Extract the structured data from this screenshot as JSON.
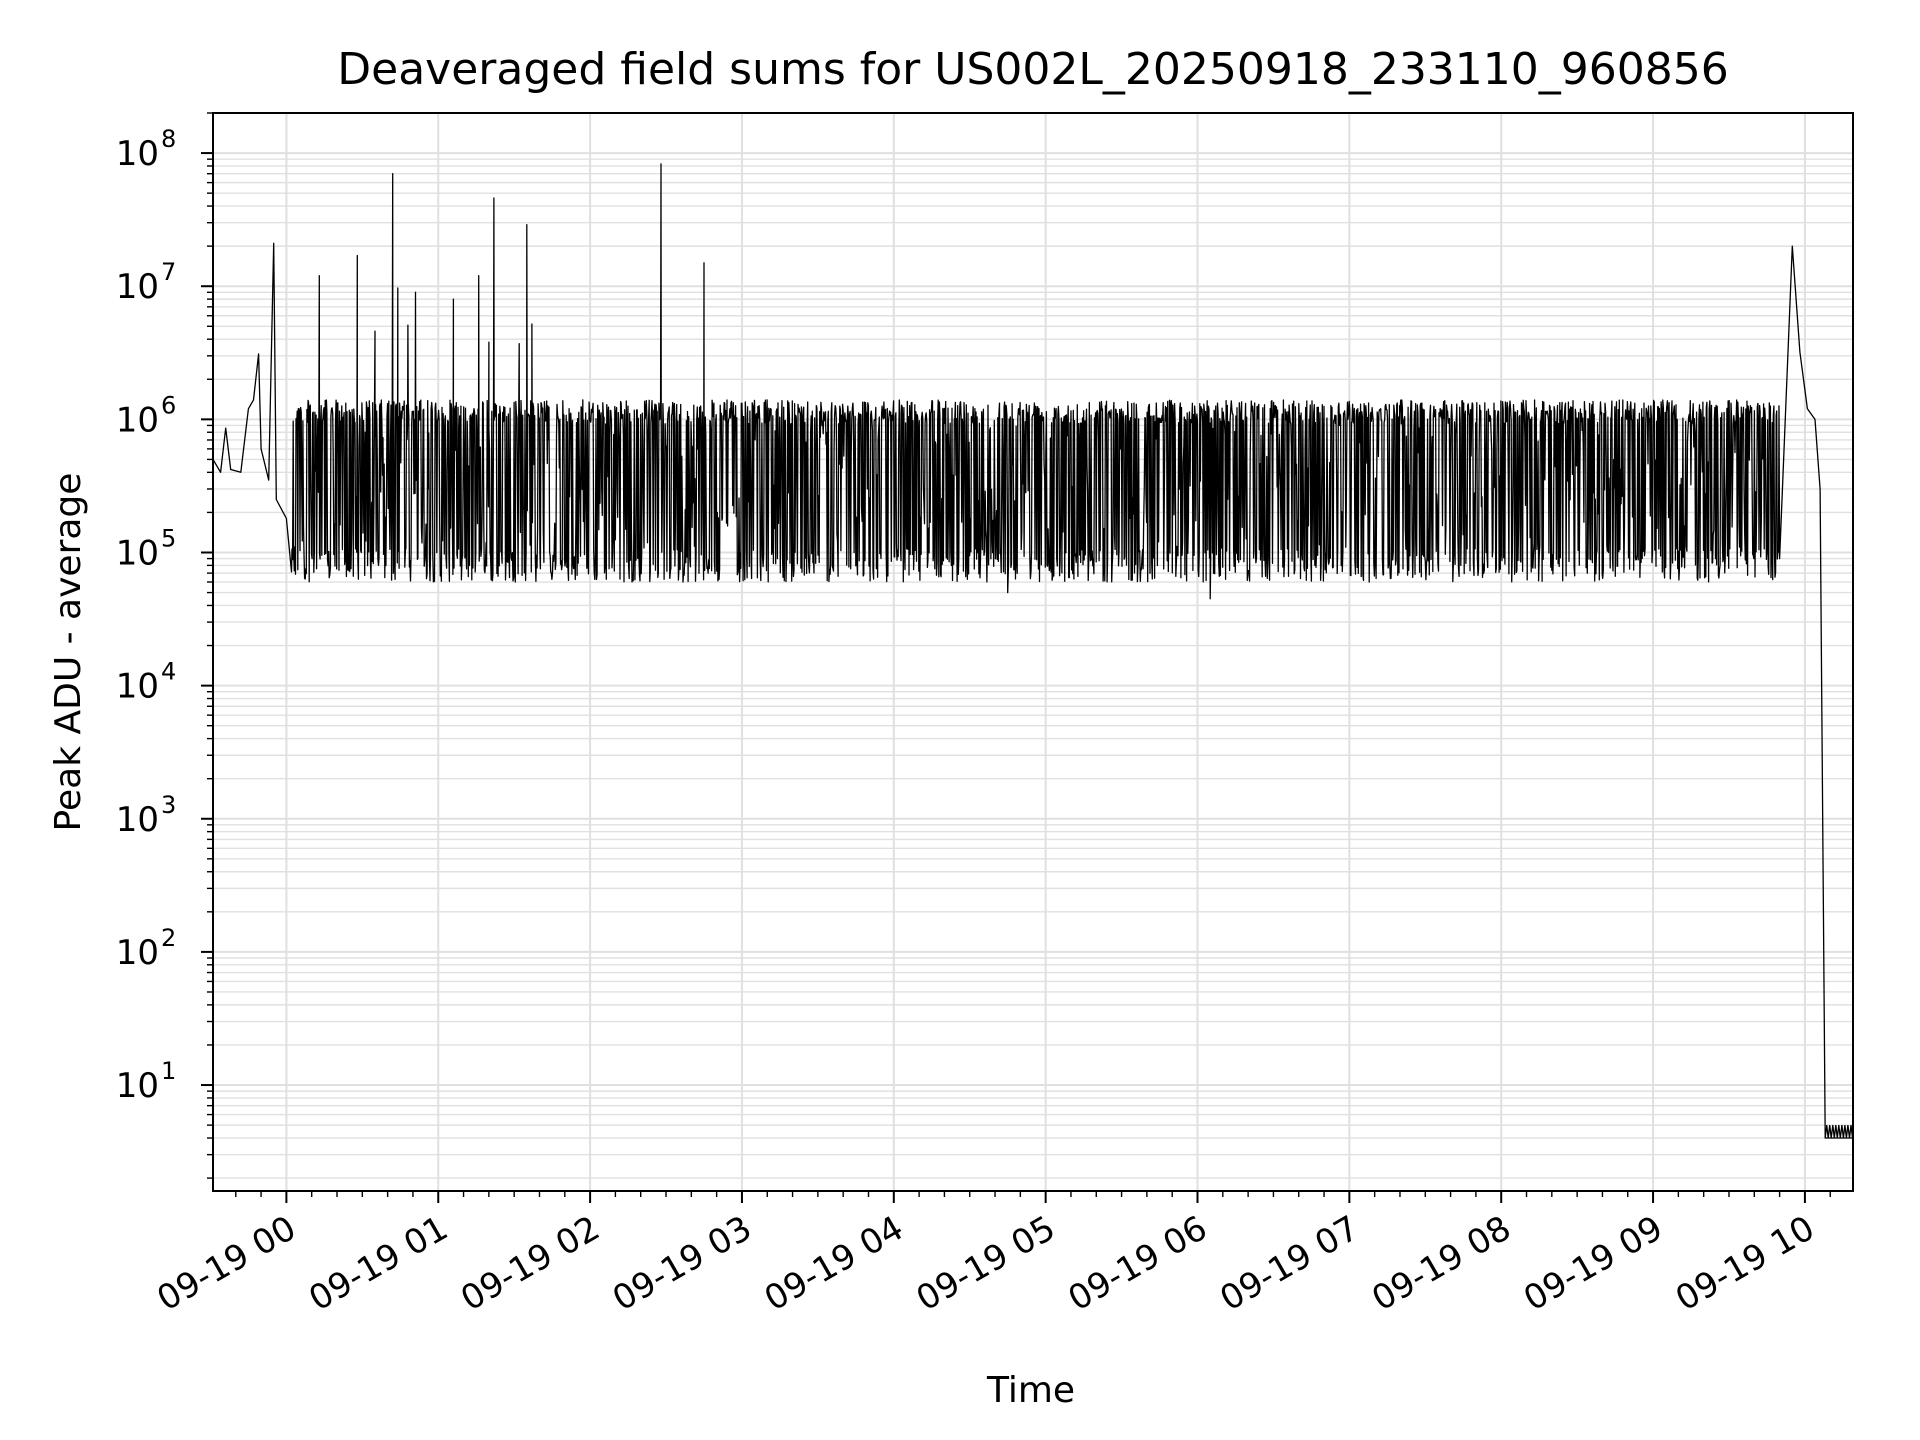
{
  "chart_data": {
    "type": "line",
    "title": "Deaveraged field sums for US002L_20250918_233110_960856",
    "xlabel": "Time",
    "ylabel": "Peak ADU - average",
    "yscale": "log",
    "ylim": [
      1.6,
      200000000
    ],
    "xlim": [
      "2025-09-18 23:31",
      "2025-09-19 10:19"
    ],
    "grid": true,
    "grid_minor": true,
    "line_color": "#000000",
    "grid_color": "#e0e0e0",
    "x_ticks": [
      {
        "value": "2025-09-19 00:00",
        "label": "09-19 00"
      },
      {
        "value": "2025-09-19 01:00",
        "label": "09-19 01"
      },
      {
        "value": "2025-09-19 02:00",
        "label": "09-19 02"
      },
      {
        "value": "2025-09-19 03:00",
        "label": "09-19 03"
      },
      {
        "value": "2025-09-19 04:00",
        "label": "09-19 04"
      },
      {
        "value": "2025-09-19 05:00",
        "label": "09-19 05"
      },
      {
        "value": "2025-09-19 06:00",
        "label": "09-19 06"
      },
      {
        "value": "2025-09-19 07:00",
        "label": "09-19 07"
      },
      {
        "value": "2025-09-19 08:00",
        "label": "09-19 08"
      },
      {
        "value": "2025-09-19 09:00",
        "label": "09-19 09"
      },
      {
        "value": "2025-09-19 10:00",
        "label": "09-19 10"
      }
    ],
    "y_ticks": [
      {
        "value": 10,
        "base": "10",
        "exp": "1"
      },
      {
        "value": 100,
        "base": "10",
        "exp": "2"
      },
      {
        "value": 1000,
        "base": "10",
        "exp": "3"
      },
      {
        "value": 10000,
        "base": "10",
        "exp": "4"
      },
      {
        "value": 100000,
        "base": "10",
        "exp": "5"
      },
      {
        "value": 1000000,
        "base": "10",
        "exp": "6"
      },
      {
        "value": 10000000,
        "base": "10",
        "exp": "7"
      },
      {
        "value": 100000000,
        "base": "10",
        "exp": "8"
      }
    ],
    "series": [
      {
        "style": "dense noisy time series",
        "points": [
          [
            "2025-09-18 23:31",
            500000
          ],
          [
            "2025-09-18 23:34",
            400000
          ],
          [
            "2025-09-18 23:36",
            860000
          ],
          [
            "2025-09-18 23:38",
            420000
          ],
          [
            "2025-09-18 23:42",
            400000
          ],
          [
            "2025-09-18 23:45",
            1200000
          ],
          [
            "2025-09-18 23:47",
            1400000
          ],
          [
            "2025-09-18 23:49",
            3100000
          ],
          [
            "2025-09-18 23:50",
            600000
          ],
          [
            "2025-09-18 23:53",
            350000
          ],
          [
            "2025-09-18 23:55",
            21000000
          ],
          [
            "2025-09-18 23:56",
            250000
          ],
          [
            "2025-09-19 00:00",
            180000
          ],
          [
            "2025-09-19 00:05",
            1200000
          ],
          [
            "2025-09-19 00:13",
            12000000
          ],
          [
            "2025-09-19 00:28",
            17000000
          ],
          [
            "2025-09-19 00:35",
            4600000
          ],
          [
            "2025-09-19 00:42",
            70000000
          ],
          [
            "2025-09-19 00:44",
            9700000
          ],
          [
            "2025-09-19 00:48",
            5100000
          ],
          [
            "2025-09-19 00:51",
            9000000
          ],
          [
            "2025-09-19 01:06",
            8000000
          ],
          [
            "2025-09-19 01:16",
            12000000
          ],
          [
            "2025-09-19 01:20",
            3800000
          ],
          [
            "2025-09-19 01:22",
            46000000
          ],
          [
            "2025-09-19 01:32",
            3700000
          ],
          [
            "2025-09-19 01:35",
            29000000
          ],
          [
            "2025-09-19 01:37",
            5200000
          ],
          [
            "2025-09-19 02:28",
            83000000
          ],
          [
            "2025-09-19 02:45",
            15000000
          ],
          [
            "2025-09-19 04:45",
            50000
          ],
          [
            "2025-09-19 06:05",
            45000
          ],
          [
            "2025-09-19 09:55",
            20000000
          ],
          [
            "2025-09-19 09:58",
            3200000
          ],
          [
            "2025-09-19 10:01",
            1200000
          ],
          [
            "2025-09-19 10:04",
            1000000
          ],
          [
            "2025-09-19 10:06",
            300000
          ],
          [
            "2025-09-19 10:08",
            4
          ],
          [
            "2025-09-19 10:19",
            4
          ]
        ],
        "band_envelope": {
          "from": "2025-09-19 00:02",
          "to": "2025-09-19 09:50",
          "upper": 1400000,
          "lower": 60000
        }
      }
    ]
  }
}
